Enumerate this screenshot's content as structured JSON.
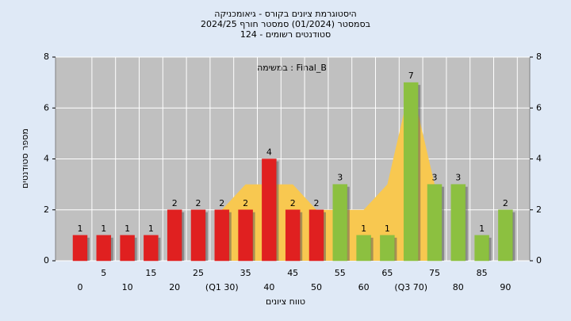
{
  "chart_data": {
    "type": "bar",
    "title_lines": [
      "היסטוגרמת ציונים בקורס - גיאומכניקה",
      "בסמסטר  (01/2024)  סמסטר חורף 2024/25",
      "סטודנטים רשומים - 124"
    ],
    "annotation": "במשימה : Final_B",
    "x_label": "טווח ציונים",
    "y_label": "מספר סטודנטים",
    "categories": [
      "0",
      "5",
      "10",
      "15",
      "20",
      "25",
      "(Q1 30)",
      "35",
      "40",
      "45",
      "50",
      "55",
      "60",
      "65",
      "(Q3 70)",
      "75",
      "80",
      "85",
      "90"
    ],
    "values": [
      1,
      1,
      1,
      1,
      2,
      2,
      2,
      2,
      4,
      2,
      2,
      3,
      1,
      1,
      7,
      3,
      3,
      1,
      2
    ],
    "colors": [
      "#e02020",
      "#e02020",
      "#e02020",
      "#e02020",
      "#e02020",
      "#e02020",
      "#e02020",
      "#e02020",
      "#e02020",
      "#e02020",
      "#e02020",
      "#8cc040",
      "#8cc040",
      "#8cc040",
      "#8cc040",
      "#8cc040",
      "#8cc040",
      "#8cc040",
      "#8cc040"
    ],
    "area": {
      "x": [
        30,
        35,
        40,
        45,
        50,
        55,
        60,
        65,
        70,
        75
      ],
      "values": [
        2,
        3,
        3,
        3,
        2,
        2,
        2,
        3,
        7,
        3
      ],
      "color": "#f8c850"
    },
    "ylim": [
      0,
      8
    ],
    "yticks": [
      0,
      2,
      4,
      6,
      8
    ],
    "grid": true
  }
}
